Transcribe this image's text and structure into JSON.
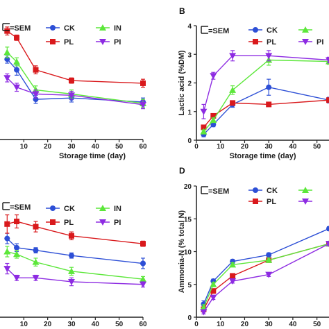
{
  "chart_data": [
    {
      "panel_letter": "",
      "type": "line",
      "xlabel": "Storage time (day)",
      "ylabel": "",
      "xlim": [
        0,
        60
      ],
      "ylim": [
        0,
        100
      ],
      "xticks": [
        "10",
        "20",
        "30",
        "40",
        "50",
        "60"
      ],
      "yticks": [],
      "legend_sem": "=SEM",
      "series": [
        {
          "name": "CK",
          "color": "#2d4fd6",
          "marker": "circle",
          "x": [
            3,
            7,
            15,
            30,
            60
          ],
          "y": [
            60,
            52,
            30,
            31,
            28
          ],
          "err": [
            3,
            4,
            3,
            3,
            3
          ]
        },
        {
          "name": "PL",
          "color": "#d9191c",
          "marker": "square",
          "x": [
            3,
            7,
            15,
            30,
            60
          ],
          "y": [
            81,
            76,
            52,
            44,
            42
          ],
          "err": [
            3,
            2,
            3,
            2,
            3
          ]
        },
        {
          "name": "IN",
          "color": "#5ce73a",
          "marker": "triangle-up",
          "x": [
            3,
            7,
            15,
            30,
            60
          ],
          "y": [
            65,
            58,
            37,
            34,
            27
          ],
          "err": [
            4,
            3,
            3,
            3,
            3
          ]
        },
        {
          "name": "PI",
          "color": "#8d2be2",
          "marker": "triangle-down",
          "x": [
            3,
            7,
            15,
            30,
            60
          ],
          "y": [
            46,
            39,
            34,
            33,
            26
          ],
          "err": [
            3,
            3,
            3,
            3,
            3
          ]
        }
      ]
    },
    {
      "panel_letter": "B",
      "type": "line",
      "xlabel": "Storage time (day)",
      "ylabel": "Lactic acid (%DM)",
      "xlim": [
        0,
        55
      ],
      "ylim": [
        0,
        4
      ],
      "xticks": [
        "0",
        "10",
        "20",
        "30",
        "40",
        "50"
      ],
      "yticks": [
        "0",
        "1",
        "2",
        "3",
        "4"
      ],
      "legend_sem": "=SEM",
      "series": [
        {
          "name": "CK",
          "color": "#2d4fd6",
          "marker": "circle",
          "x": [
            3,
            7,
            15,
            30,
            55
          ],
          "y": [
            0.2,
            0.55,
            1.25,
            1.85,
            1.4
          ],
          "err": [
            0.08,
            0.08,
            0.1,
            0.28,
            0.1
          ]
        },
        {
          "name": "PL",
          "color": "#d9191c",
          "marker": "square",
          "x": [
            3,
            7,
            15,
            30,
            55
          ],
          "y": [
            0.45,
            0.85,
            1.3,
            1.25,
            1.4
          ],
          "err": [
            0.06,
            0.06,
            0.08,
            0.06,
            0.06
          ]
        },
        {
          "name": "",
          "color": "#5ce73a",
          "marker": "triangle-up",
          "x": [
            3,
            7,
            15,
            30,
            55
          ],
          "y": [
            0.3,
            0.7,
            1.75,
            2.8,
            2.75
          ],
          "err": [
            0.06,
            0.08,
            0.15,
            0.18,
            0.1
          ]
        },
        {
          "name": "PI",
          "color": "#8d2be2",
          "marker": "triangle-down",
          "x": [
            3,
            7,
            15,
            30,
            55
          ],
          "y": [
            1.0,
            2.25,
            2.95,
            2.95,
            2.8
          ],
          "err": [
            0.25,
            0.12,
            0.18,
            0.18,
            0.1
          ]
        }
      ]
    },
    {
      "panel_letter": "",
      "type": "line",
      "xlabel": "Storage time (day)",
      "ylabel": "",
      "xlim": [
        0,
        60
      ],
      "ylim": [
        0,
        100
      ],
      "xticks": [
        "10",
        "20",
        "30",
        "40",
        "50",
        "60"
      ],
      "yticks": [],
      "legend_sem": "=SEM",
      "series": [
        {
          "name": "CK",
          "color": "#2d4fd6",
          "marker": "circle",
          "x": [
            3,
            7,
            15,
            30,
            60
          ],
          "y": [
            60,
            53,
            51,
            47,
            41
          ],
          "err": [
            4,
            3,
            2,
            2,
            4
          ]
        },
        {
          "name": "PL",
          "color": "#d9191c",
          "marker": "square",
          "x": [
            3,
            7,
            15,
            30,
            60
          ],
          "y": [
            71,
            73,
            69,
            62,
            56
          ],
          "err": [
            7,
            5,
            4,
            3,
            2
          ]
        },
        {
          "name": "IN",
          "color": "#5ce73a",
          "marker": "triangle-up",
          "x": [
            3,
            7,
            15,
            30,
            60
          ],
          "y": [
            50,
            48,
            42,
            35,
            29
          ],
          "err": [
            4,
            3,
            3,
            3,
            2
          ]
        },
        {
          "name": "PI",
          "color": "#8d2be2",
          "marker": "triangle-down",
          "x": [
            3,
            7,
            15,
            30,
            60
          ],
          "y": [
            37,
            30,
            30,
            27,
            25
          ],
          "err": [
            4,
            2,
            2,
            3,
            2
          ]
        }
      ]
    },
    {
      "panel_letter": "D",
      "type": "line",
      "xlabel": "Storage time (day)",
      "ylabel": "Ammonia-N (% total N)",
      "xlim": [
        0,
        55
      ],
      "ylim": [
        0,
        20
      ],
      "xticks": [
        "0",
        "10",
        "20",
        "30",
        "40",
        "50"
      ],
      "yticks": [
        "0",
        "5",
        "10",
        "15",
        "20"
      ],
      "legend_sem": "=SEM",
      "series": [
        {
          "name": "CK",
          "color": "#2d4fd6",
          "marker": "circle",
          "x": [
            3,
            7,
            15,
            30,
            55
          ],
          "y": [
            2.0,
            5.5,
            8.5,
            9.5,
            13.5
          ],
          "err": [
            0.5,
            0.3,
            0.3,
            0.3,
            0.3
          ]
        },
        {
          "name": "PL",
          "color": "#d9191c",
          "marker": "square",
          "x": [
            3,
            7,
            15,
            30,
            55
          ],
          "y": [
            1.2,
            4.0,
            6.3,
            8.7,
            11.2
          ],
          "err": [
            0.4,
            0.3,
            0.3,
            0.3,
            0.3
          ]
        },
        {
          "name": "",
          "color": "#5ce73a",
          "marker": "triangle-up",
          "x": [
            3,
            7,
            15,
            30,
            55
          ],
          "y": [
            1.5,
            5.0,
            8.0,
            8.7,
            11.2
          ],
          "err": [
            0.4,
            0.3,
            0.3,
            0.3,
            0.3
          ]
        },
        {
          "name": "",
          "color": "#8d2be2",
          "marker": "triangle-down",
          "x": [
            3,
            7,
            15,
            30,
            55
          ],
          "y": [
            0.8,
            3.0,
            5.5,
            6.5,
            11.2
          ],
          "err": [
            0.3,
            0.3,
            0.3,
            0.3,
            0.3
          ]
        }
      ]
    }
  ]
}
